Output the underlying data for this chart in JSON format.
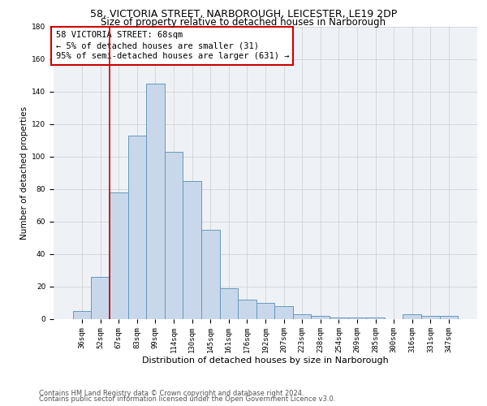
{
  "title1": "58, VICTORIA STREET, NARBOROUGH, LEICESTER, LE19 2DP",
  "title2": "Size of property relative to detached houses in Narborough",
  "xlabel": "Distribution of detached houses by size in Narborough",
  "ylabel": "Number of detached properties",
  "categories": [
    "36sqm",
    "52sqm",
    "67sqm",
    "83sqm",
    "99sqm",
    "114sqm",
    "130sqm",
    "145sqm",
    "161sqm",
    "176sqm",
    "192sqm",
    "207sqm",
    "223sqm",
    "238sqm",
    "254sqm",
    "269sqm",
    "285sqm",
    "300sqm",
    "316sqm",
    "331sqm",
    "347sqm"
  ],
  "values": [
    5,
    26,
    78,
    113,
    145,
    103,
    85,
    55,
    19,
    12,
    10,
    8,
    3,
    2,
    1,
    1,
    1,
    0,
    3,
    2,
    2
  ],
  "bar_color": "#c8d8ea",
  "bar_edge_color": "#6699bb",
  "vline_x_index": 2,
  "vline_color": "#cc0000",
  "annotation_line1": "58 VICTORIA STREET: 68sqm",
  "annotation_line2": "← 5% of detached houses are smaller (31)",
  "annotation_line3": "95% of semi-detached houses are larger (631) →",
  "annotation_box_color": "#ffffff",
  "annotation_box_edge_color": "#cc0000",
  "ylim": [
    0,
    180
  ],
  "yticks": [
    0,
    20,
    40,
    60,
    80,
    100,
    120,
    140,
    160,
    180
  ],
  "grid_color": "#cccccc",
  "bg_color": "#eef2f7",
  "footer1": "Contains HM Land Registry data © Crown copyright and database right 2024.",
  "footer2": "Contains public sector information licensed under the Open Government Licence v3.0.",
  "title1_fontsize": 9,
  "title2_fontsize": 8.5,
  "xlabel_fontsize": 8,
  "ylabel_fontsize": 7.5,
  "tick_fontsize": 6.5,
  "annotation_fontsize": 7.5,
  "footer_fontsize": 6
}
